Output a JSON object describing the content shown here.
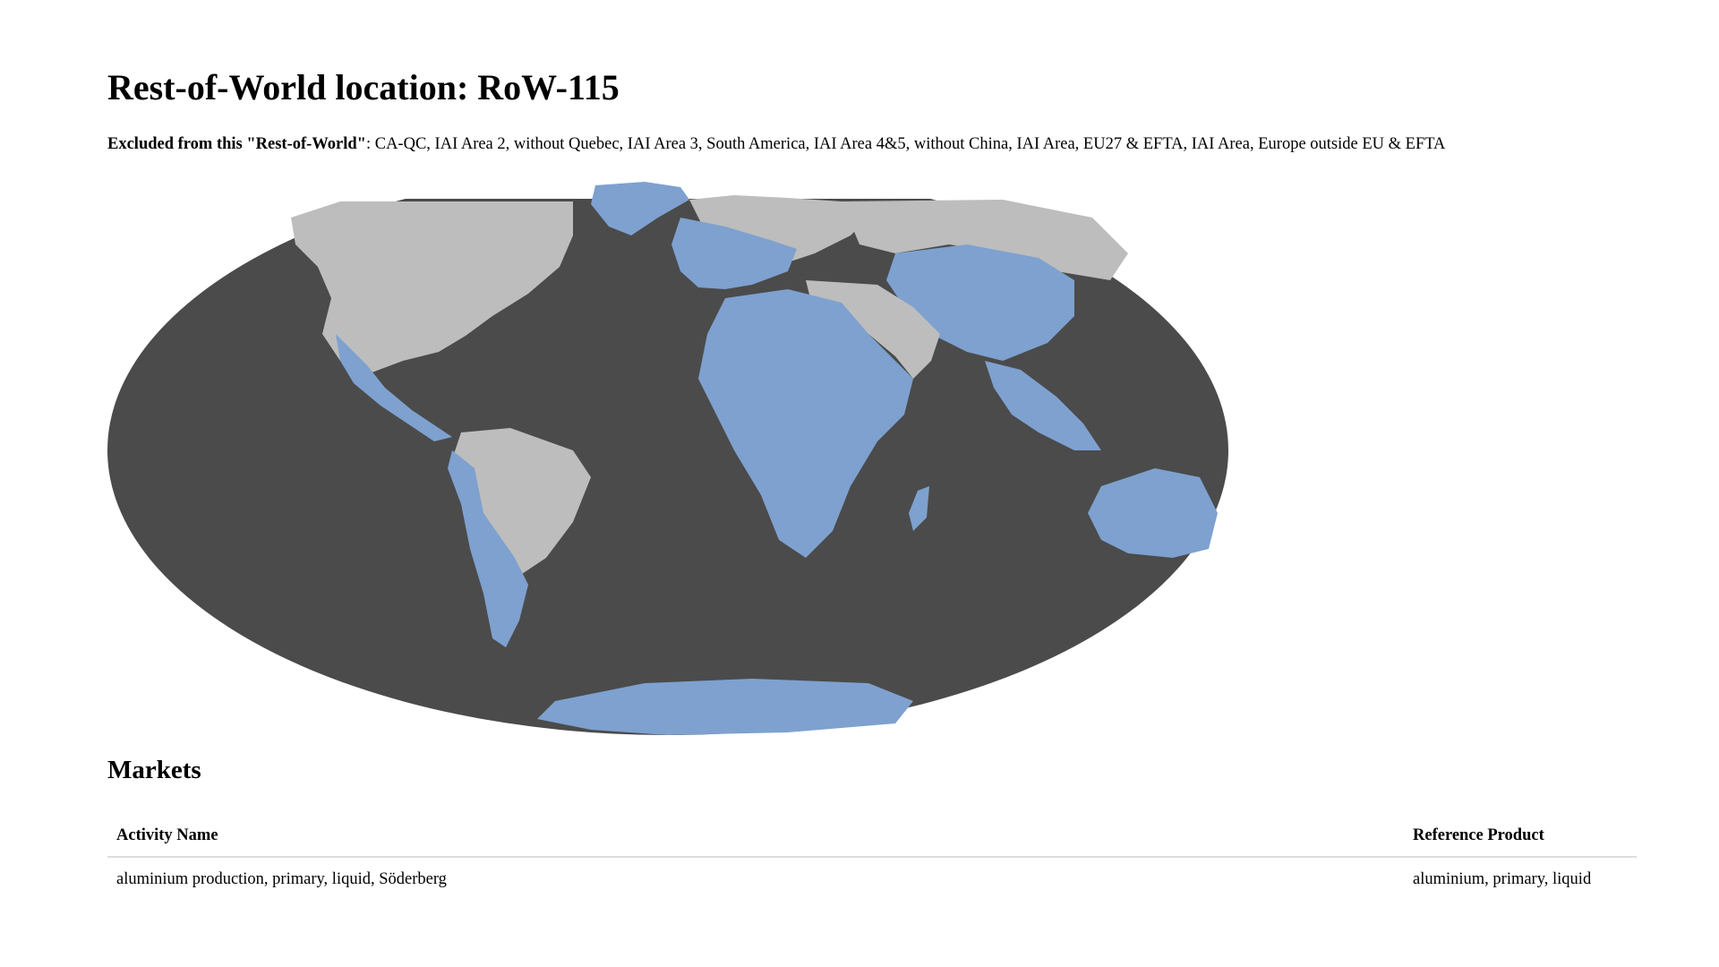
{
  "page": {
    "title": "Rest-of-World location: RoW-115",
    "excluded_label": "Excluded from this \"Rest-of-World\"",
    "excluded_separator": ": ",
    "excluded_list": "CA-QC, IAI Area 2, without Quebec, IAI Area 3, South America, IAI Area 4&5, without China, IAI Area, EU27 & EFTA, IAI Area, Europe outside EU & EFTA"
  },
  "map": {
    "projection": "mollweide",
    "ocean_color": "#4b4b4b",
    "land_color": "#bdbdbd",
    "included_color": "#7ea1cf"
  },
  "markets": {
    "title": "Markets",
    "columns": [
      "Activity Name",
      "Reference Product"
    ],
    "rows": [
      {
        "activity": "aluminium production, primary, liquid, Söderberg",
        "product": "aluminium, primary, liquid"
      }
    ]
  }
}
